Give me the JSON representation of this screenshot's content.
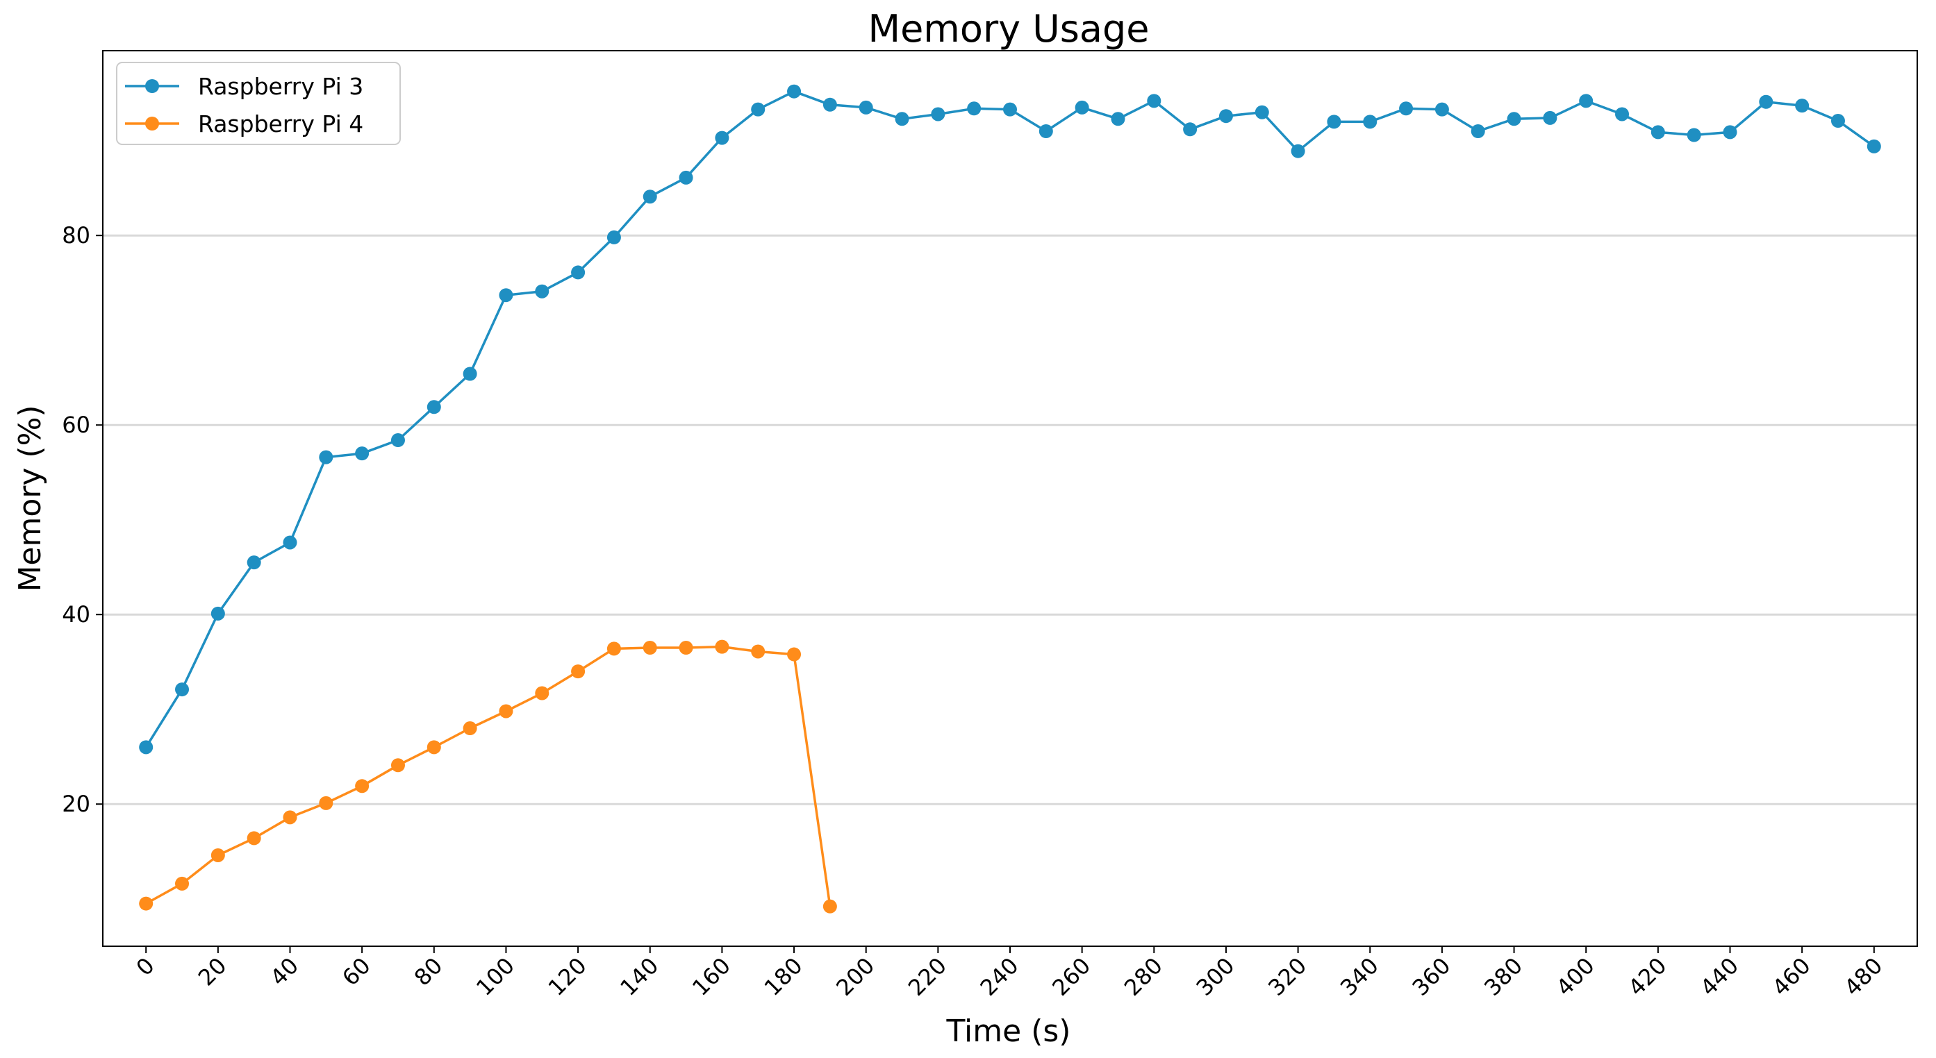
{
  "chart_data": {
    "type": "line",
    "title": "Memory Usage",
    "xlabel": "Time (s)",
    "ylabel": "Memory (%)",
    "xlim": [
      -12,
      492
    ],
    "ylim": [
      5,
      99.5
    ],
    "x_ticks": [
      0,
      20,
      40,
      60,
      80,
      100,
      120,
      140,
      160,
      180,
      200,
      220,
      240,
      260,
      280,
      300,
      320,
      340,
      360,
      380,
      400,
      420,
      440,
      460,
      480
    ],
    "y_ticks": [
      20,
      40,
      60,
      80
    ],
    "grid": "horizontal",
    "legend_position": "top-left",
    "series": [
      {
        "name": "Raspberry Pi 3",
        "color": "#1f8fc2",
        "marker": "circle",
        "x": [
          0,
          10,
          20,
          30,
          40,
          50,
          60,
          70,
          80,
          90,
          100,
          110,
          120,
          130,
          140,
          150,
          160,
          170,
          180,
          190,
          200,
          210,
          220,
          230,
          240,
          250,
          260,
          270,
          280,
          290,
          300,
          310,
          320,
          330,
          340,
          350,
          360,
          370,
          380,
          390,
          400,
          410,
          420,
          430,
          440,
          450,
          460,
          470,
          480
        ],
        "values": [
          26.0,
          32.1,
          40.1,
          45.5,
          47.6,
          56.6,
          57.0,
          58.4,
          61.9,
          65.4,
          73.7,
          74.1,
          76.1,
          79.8,
          84.1,
          86.1,
          90.3,
          93.3,
          95.2,
          93.8,
          93.5,
          92.3,
          92.8,
          93.4,
          93.3,
          91.0,
          93.5,
          92.3,
          94.2,
          91.2,
          92.6,
          93.0,
          88.9,
          92.0,
          92.0,
          93.4,
          93.3,
          91.0,
          92.3,
          92.4,
          94.2,
          92.8,
          90.9,
          90.6,
          90.9,
          94.1,
          93.7,
          92.1,
          89.4
        ]
      },
      {
        "name": "Raspberry Pi 4",
        "color": "#ff8c1a",
        "marker": "circle",
        "x": [
          0,
          10,
          20,
          30,
          40,
          50,
          60,
          70,
          80,
          90,
          100,
          110,
          120,
          130,
          140,
          150,
          160,
          170,
          180,
          190
        ],
        "values": [
          9.5,
          11.6,
          14.6,
          16.4,
          18.6,
          20.1,
          21.9,
          24.1,
          26.0,
          28.0,
          29.8,
          31.7,
          34.0,
          36.4,
          36.5,
          36.5,
          36.6,
          36.1,
          35.8,
          9.2
        ]
      }
    ]
  }
}
